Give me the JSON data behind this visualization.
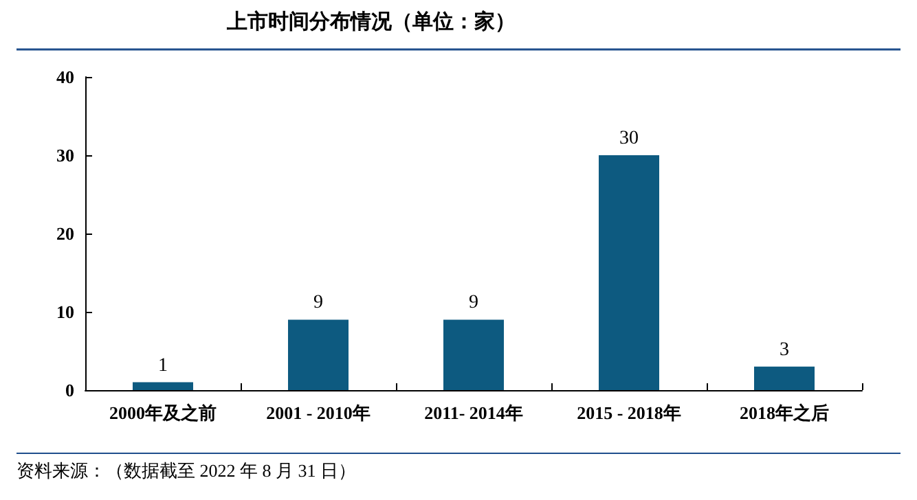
{
  "chart_data": {
    "type": "bar",
    "title": "上市时间分布情况（单位：家）",
    "categories": [
      "2000年及之前",
      "2001 - 2010年",
      "2011- 2014年",
      "2015 - 2018年",
      "2018年之后"
    ],
    "values": [
      1,
      9,
      9,
      30,
      3
    ],
    "color": "#0d5a80",
    "ylim": [
      0,
      40
    ],
    "yticks": [
      0,
      10,
      20,
      30,
      40
    ],
    "grid": false,
    "data_labels": true,
    "annotations": [
      "资料来源：（数据截至 2022 年 8 月 31 日）"
    ]
  }
}
